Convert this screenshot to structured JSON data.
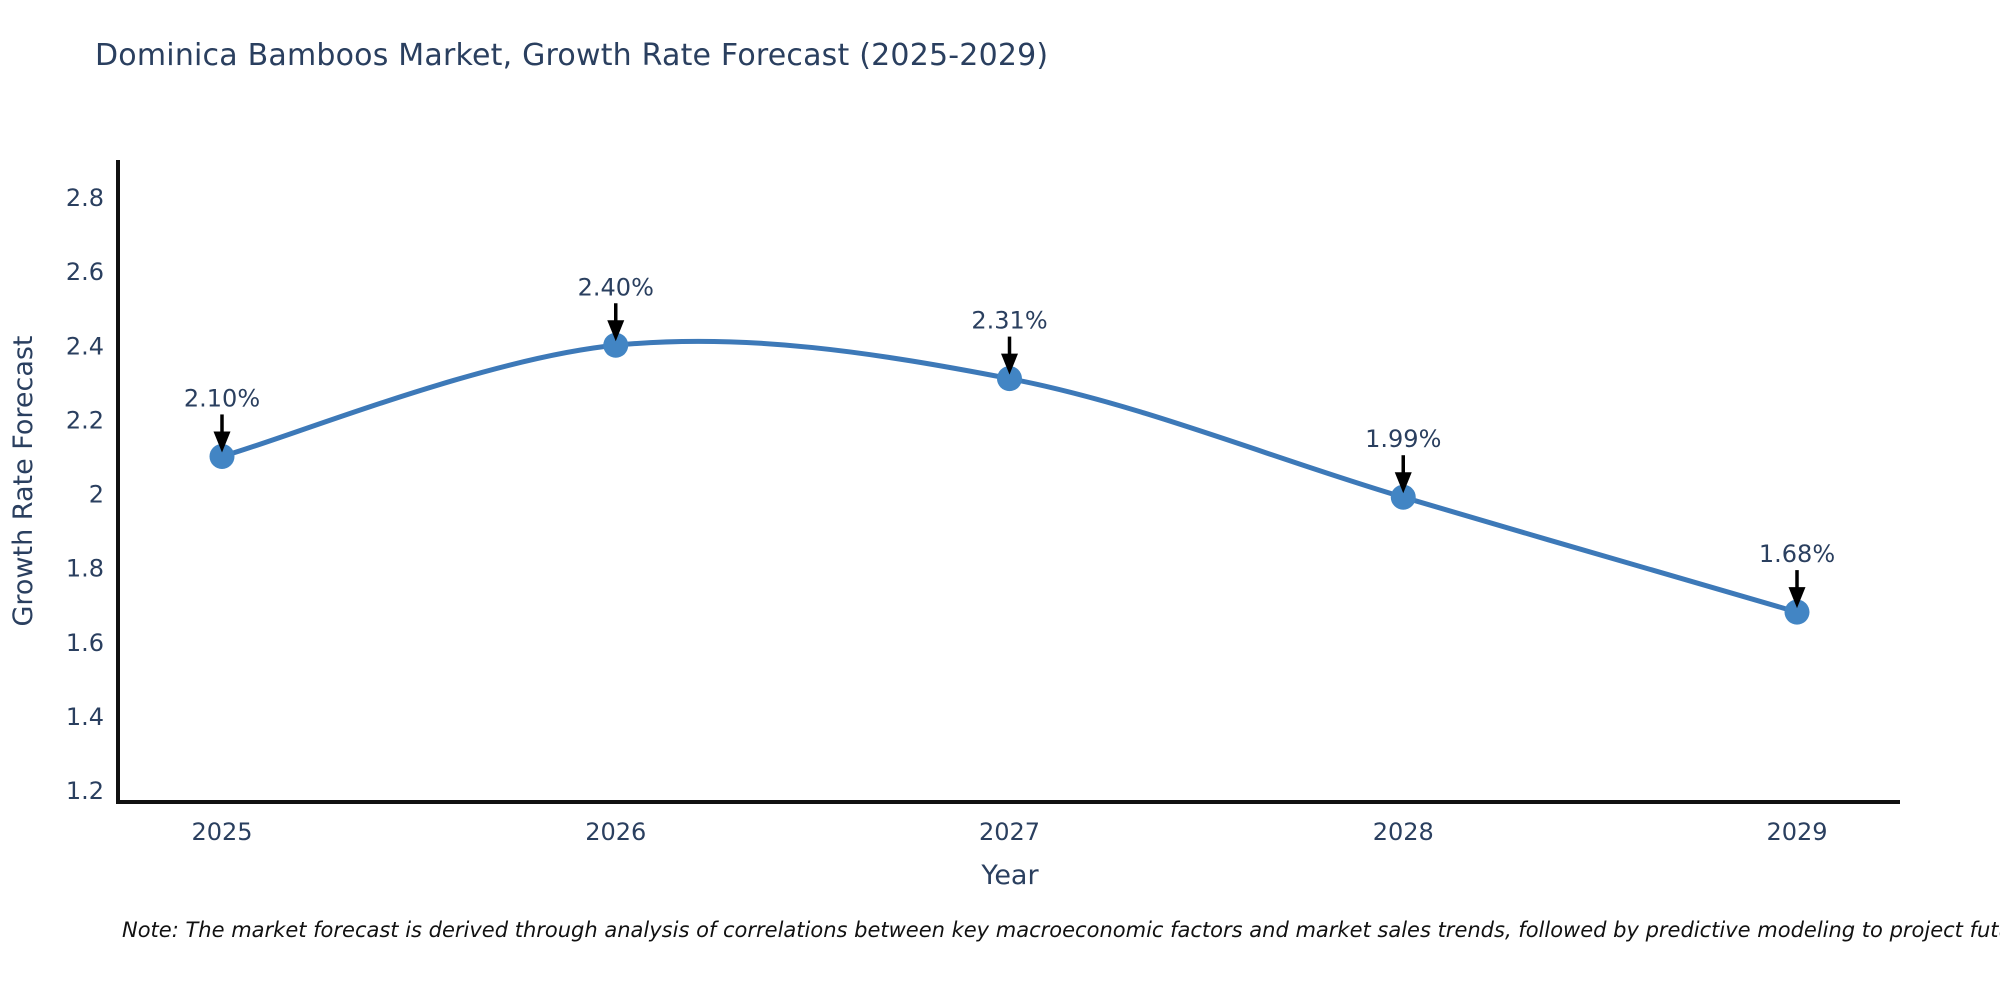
{
  "title": "Dominica Bamboos Market, Growth Rate Forecast (2025-2029)",
  "note": "Note: The market forecast is derived through analysis of correlations between key macroeconomic factors and market sales trends, followed by predictive modeling to project future sales",
  "chart_data": {
    "type": "line",
    "line_shape": "spline",
    "title": "Dominica Bamboos Market, Growth Rate Forecast (2025-2029)",
    "xlabel": "Year",
    "ylabel": "Growth Rate Forecast",
    "x": [
      2025,
      2026,
      2027,
      2028,
      2029
    ],
    "x_labels": [
      "2025",
      "2026",
      "2027",
      "2028",
      "2029"
    ],
    "series": [
      {
        "name": "Growth Rate Forecast",
        "values": [
          2.1,
          2.4,
          2.31,
          1.99,
          1.68
        ]
      }
    ],
    "point_labels": [
      "2.10%",
      "2.40%",
      "2.31%",
      "1.99%",
      "1.68%"
    ],
    "ylim": [
      1.2,
      2.8
    ],
    "ytick_values": [
      2.8,
      2.6,
      2.4,
      2.2,
      2.0,
      1.8,
      1.6,
      1.4,
      1.2
    ],
    "ytick_labels": [
      "2.8",
      "2.6",
      "2.4",
      "2.2",
      "2",
      "1.8",
      "1.6",
      "1.4",
      "1.2"
    ],
    "grid": false,
    "legend": "none",
    "annotations_have_arrows": true,
    "colors": {
      "line": "#3d79b8",
      "marker": "#4285c4",
      "axis": "#111111",
      "text": "#2a3f5f",
      "annotation_arrow": "#000000",
      "background": "#ffffff"
    }
  }
}
